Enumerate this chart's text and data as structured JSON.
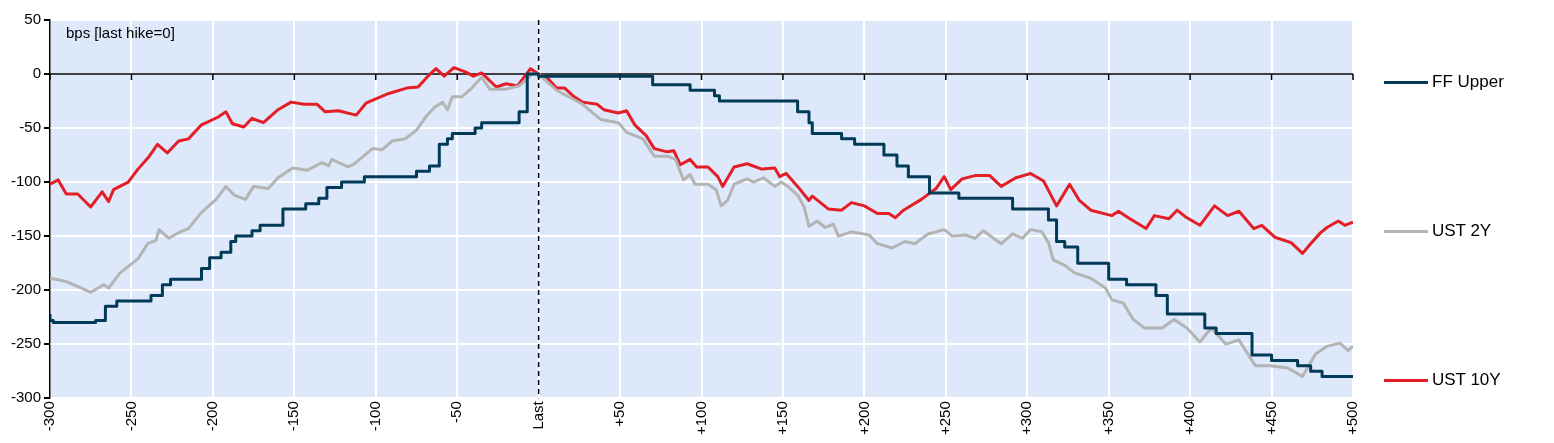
{
  "chart_data": {
    "type": "line",
    "annotations": [
      "bps [last hike=0]"
    ],
    "xlim": [
      -300,
      500
    ],
    "xticks": [
      -300,
      -250,
      -200,
      -150,
      -100,
      -50,
      {
        "value": 0,
        "label": "Last"
      },
      {
        "value": 50,
        "label": "+50"
      },
      {
        "value": 100,
        "label": "+100"
      },
      {
        "value": 150,
        "label": "+150"
      },
      {
        "value": 200,
        "label": "+200"
      },
      {
        "value": 250,
        "label": "+250"
      },
      {
        "value": 300,
        "label": "+300"
      },
      {
        "value": 350,
        "label": "+350"
      },
      {
        "value": 400,
        "label": "+400"
      },
      {
        "value": 450,
        "label": "+450"
      },
      {
        "value": 500,
        "label": "+500"
      }
    ],
    "ylim": [
      -300,
      50
    ],
    "yticks": [
      -300,
      -250,
      -200,
      -150,
      -100,
      -50,
      0,
      50
    ],
    "grid": true,
    "legend": "right",
    "ref_lines": [
      {
        "axis": "x",
        "value": 0,
        "color": "#000000",
        "line_style": "dashed"
      },
      {
        "axis": "y",
        "value": 0,
        "color": "#000000",
        "line_style": "solid"
      }
    ],
    "series": [
      {
        "name": "FF Upper",
        "type": "step",
        "color": "#003a57",
        "x": [
          -300,
          -298,
          -272,
          -266,
          -259,
          -238,
          -231,
          -226,
          -207,
          -202,
          -195,
          -189,
          -186,
          -176,
          -171,
          -157,
          -143,
          -135,
          -130,
          -121,
          -107,
          -75,
          -67,
          -61,
          -56,
          -53,
          -39,
          -35,
          -12,
          -7,
          0,
          70,
          93,
          108,
          111,
          159,
          166,
          168,
          186,
          194,
          212,
          220,
          227,
          240,
          258,
          291,
          313,
          318,
          323,
          331,
          350,
          361,
          379,
          386,
          409,
          416,
          438,
          450,
          466,
          474,
          481,
          491,
          500
        ],
        "values": [
          -222,
          -228,
          -230,
          -228,
          -215,
          -210,
          -205,
          -195,
          -190,
          -180,
          -170,
          -165,
          -155,
          -150,
          -145,
          -140,
          -125,
          -120,
          -115,
          -105,
          -100,
          -95,
          -90,
          -85,
          -65,
          -60,
          -55,
          -50,
          -45,
          -35,
          0,
          -2,
          -10,
          -15,
          -20,
          -25,
          -35,
          -45,
          -55,
          -60,
          -65,
          -75,
          -85,
          -95,
          -110,
          -115,
          -125,
          -135,
          -155,
          -160,
          -175,
          -190,
          -195,
          -205,
          -222,
          -235,
          -240,
          -260,
          -265,
          -270,
          -275,
          -280,
          -280
        ]
      },
      {
        "name": "UST 2Y",
        "type": "line",
        "color": "#b4b4b4",
        "x": [
          -300,
          -290,
          -281,
          -275,
          -267,
          -264,
          -257,
          -246,
          -240,
          -235,
          -233,
          -227,
          -220,
          -215,
          -207,
          -198,
          -192,
          -187,
          -180,
          -175,
          -166,
          -160,
          -151,
          -142,
          -133,
          -129,
          -127,
          -117,
          -113,
          -102,
          -96,
          -90,
          -82,
          -75,
          -69,
          -64,
          -59,
          -56,
          -53,
          -47,
          -41,
          -35,
          -30,
          -20,
          -12,
          -4,
          0,
          11,
          27,
          38,
          49,
          54,
          64,
          71,
          79,
          84,
          89,
          93,
          96,
          104,
          109,
          112,
          116,
          120,
          128,
          132,
          138,
          145,
          149,
          153,
          159,
          163,
          166,
          171,
          176,
          181,
          184,
          192,
          203,
          208,
          217,
          225,
          231,
          239,
          249,
          254,
          262,
          268,
          273,
          284,
          291,
          297,
          302,
          309,
          313,
          316,
          323,
          329,
          339,
          348,
          352,
          359,
          365,
          372,
          383,
          390,
          398,
          406,
          413,
          422,
          430,
          440,
          449,
          460,
          469,
          477,
          484,
          492,
          497,
          500
        ],
        "values": [
          -189,
          -192,
          -198,
          -202,
          -195,
          -198,
          -184,
          -171,
          -157,
          -154,
          -144,
          -152,
          -146,
          -143,
          -128,
          -116,
          -104,
          -112,
          -116,
          -104,
          -106,
          -96,
          -87,
          -89,
          -82,
          -85,
          -79,
          -86,
          -83,
          -69,
          -70,
          -62,
          -60,
          -52,
          -39,
          -31,
          -26,
          -33,
          -21,
          -21,
          -13,
          -3,
          -14,
          -14,
          -11,
          0,
          0,
          -15,
          -28,
          -42,
          -45,
          -54,
          -60,
          -76,
          -76,
          -79,
          -98,
          -93,
          -102,
          -102,
          -107,
          -122,
          -117,
          -102,
          -97,
          -100,
          -96,
          -104,
          -100,
          -104,
          -112,
          -123,
          -141,
          -136,
          -142,
          -139,
          -150,
          -146,
          -149,
          -157,
          -161,
          -155,
          -157,
          -148,
          -144,
          -150,
          -149,
          -152,
          -145,
          -157,
          -148,
          -152,
          -144,
          -146,
          -156,
          -172,
          -177,
          -184,
          -189,
          -198,
          -209,
          -212,
          -227,
          -235,
          -235,
          -227,
          -235,
          -248,
          -235,
          -250,
          -246,
          -270,
          -270,
          -272,
          -280,
          -259,
          -252,
          -249,
          -256,
          -252
        ]
      },
      {
        "name": "UST 10Y",
        "type": "line",
        "color": "#e41e26",
        "x": [
          -300,
          -295,
          -290,
          -283,
          -275,
          -268,
          -264,
          -261,
          -252,
          -246,
          -239,
          -234,
          -228,
          -221,
          -215,
          -207,
          -197,
          -192,
          -188,
          -181,
          -176,
          -169,
          -160,
          -152,
          -144,
          -136,
          -131,
          -123,
          -112,
          -106,
          -100,
          -92,
          -81,
          -74,
          -68,
          -63,
          -58,
          -52,
          -45,
          -40,
          -35,
          -26,
          -20,
          -13,
          -5,
          0,
          5,
          11,
          16,
          21,
          27,
          36,
          40,
          49,
          54,
          59,
          66,
          71,
          79,
          83,
          87,
          93,
          97,
          104,
          110,
          113,
          120,
          128,
          137,
          145,
          148,
          152,
          159,
          166,
          168,
          178,
          186,
          192,
          200,
          208,
          215,
          219,
          224,
          235,
          244,
          249,
          253,
          260,
          268,
          277,
          284,
          293,
          302,
          310,
          318,
          326,
          332,
          339,
          352,
          356,
          363,
          373,
          378,
          387,
          392,
          397,
          406,
          415,
          423,
          430,
          439,
          444,
          452,
          462,
          469,
          474,
          480,
          484,
          491,
          495,
          500
        ],
        "values": [
          -102,
          -98,
          -111,
          -111,
          -123,
          -109,
          -118,
          -107,
          -100,
          -88,
          -76,
          -65,
          -73,
          -62,
          -60,
          -47,
          -40,
          -35,
          -46,
          -49,
          -41,
          -45,
          -33,
          -26,
          -28,
          -28,
          -35,
          -34,
          -38,
          -27,
          -23,
          -18,
          -13,
          -12,
          -2,
          5,
          -2,
          6,
          2,
          -2,
          1,
          -12,
          -9,
          -11,
          5,
          0,
          -3,
          -13,
          -13,
          -20,
          -26,
          -28,
          -33,
          -36,
          -34,
          -47,
          -57,
          -69,
          -72,
          -71,
          -84,
          -79,
          -86,
          -86,
          -95,
          -104,
          -86,
          -83,
          -88,
          -87,
          -95,
          -92,
          -104,
          -117,
          -113,
          -125,
          -126,
          -119,
          -122,
          -129,
          -129,
          -133,
          -126,
          -116,
          -106,
          -95,
          -107,
          -97,
          -94,
          -94,
          -104,
          -96,
          -92,
          -99,
          -122,
          -102,
          -117,
          -126,
          -131,
          -127,
          -134,
          -143,
          -131,
          -134,
          -126,
          -132,
          -140,
          -122,
          -131,
          -127,
          -143,
          -140,
          -151,
          -156,
          -166,
          -157,
          -147,
          -142,
          -136,
          -140,
          -137
        ]
      }
    ]
  }
}
